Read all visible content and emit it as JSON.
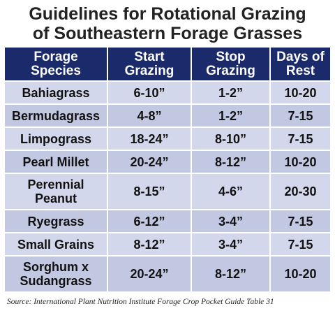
{
  "title": {
    "line1": "Guidelines for Rotational Grazing",
    "line2": "of Southeastern Forage Grasses"
  },
  "table": {
    "headers": [
      {
        "line1": "Forage",
        "line2": "Species"
      },
      {
        "line1": "Start",
        "line2": "Grazing"
      },
      {
        "line1": "Stop",
        "line2": "Grazing"
      },
      {
        "line1": "Days of",
        "line2": "Rest"
      }
    ],
    "rows": [
      {
        "species": [
          "Bahiagrass"
        ],
        "start": "6-10”",
        "stop": "1-2”",
        "rest": "10-20"
      },
      {
        "species": [
          "Bermudagrass"
        ],
        "start": "4-8”",
        "stop": "1-2”",
        "rest": "7-15"
      },
      {
        "species": [
          "Limpograss"
        ],
        "start": "18-24”",
        "stop": "8-10”",
        "rest": "7-15"
      },
      {
        "species": [
          "Pearl Millet"
        ],
        "start": "20-24”",
        "stop": "8-12”",
        "rest": "10-20"
      },
      {
        "species": [
          "Perennial",
          "Peanut"
        ],
        "start": "8-15”",
        "stop": "4-6”",
        "rest": "20-30"
      },
      {
        "species": [
          "Ryegrass"
        ],
        "start": "6-12”",
        "stop": "3-4”",
        "rest": "7-15"
      },
      {
        "species": [
          "Small Grains"
        ],
        "start": "8-12”",
        "stop": "3-4”",
        "rest": "7-15"
      },
      {
        "species": [
          "Sorghum x",
          "Sudangrass"
        ],
        "start": "20-24”",
        "stop": "8-12”",
        "rest": "10-20"
      }
    ]
  },
  "source": "Source:  International Plant Nutrition Institute Forage Crop Pocket Guide Table 31"
}
